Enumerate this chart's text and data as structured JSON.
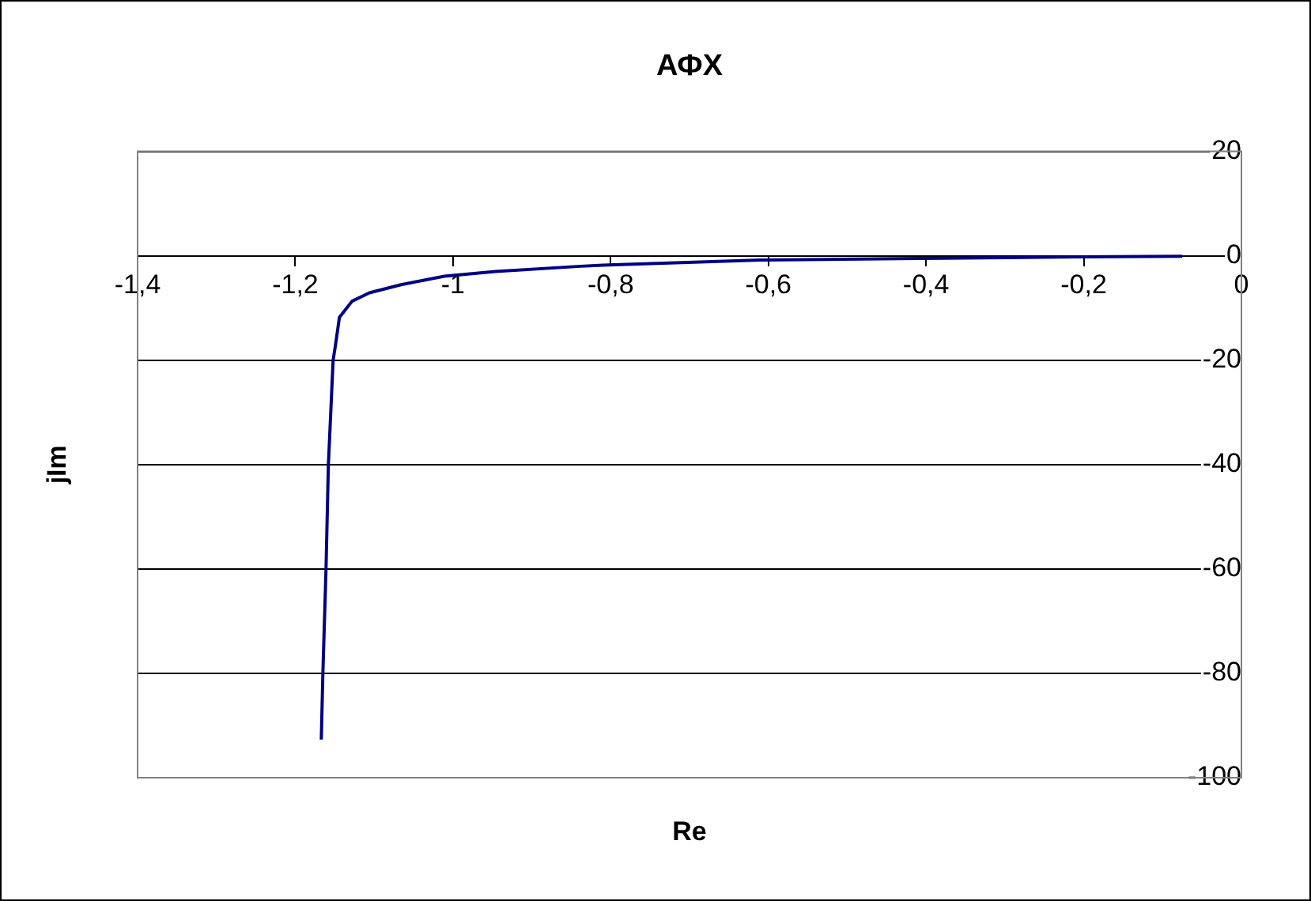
{
  "chart_data": {
    "type": "line",
    "title": "АФХ",
    "xlabel": "Re",
    "ylabel": "jIm",
    "x": [
      -1.167,
      -1.165,
      -1.161,
      -1.158,
      -1.152,
      -1.149,
      -1.144,
      -1.128,
      -1.106,
      -1.065,
      -1.011,
      -0.946,
      -0.838,
      -0.81,
      -0.61,
      -0.409,
      -0.209,
      -0.075
    ],
    "series": [
      {
        "color": "#000080",
        "values": [
          -92.7,
          -80,
          -60,
          -40,
          -20,
          -17.1,
          -11.8,
          -8.7,
          -7.1,
          -5.5,
          -3.9,
          -3.0,
          -2.0,
          -1.8,
          -0.8,
          -0.5,
          -0.2,
          -0.1
        ]
      }
    ],
    "xlim": [
      -1.4,
      0
    ],
    "xticks": [
      {
        "value": -1.4,
        "label": "-1,4"
      },
      {
        "value": -1.2,
        "label": "-1,2"
      },
      -1,
      {
        "value": -0.8,
        "label": "-0,8"
      },
      {
        "value": -0.6,
        "label": "-0,6"
      },
      {
        "value": -0.4,
        "label": "-0,4"
      },
      {
        "value": -0.2,
        "label": "-0,2"
      },
      0
    ],
    "ylim": [
      -100,
      20
    ],
    "yticks": [
      -100,
      -80,
      -60,
      -40,
      -20,
      0,
      20
    ],
    "grid": "y",
    "legend": false,
    "marker": "none",
    "line_style": "solid"
  }
}
